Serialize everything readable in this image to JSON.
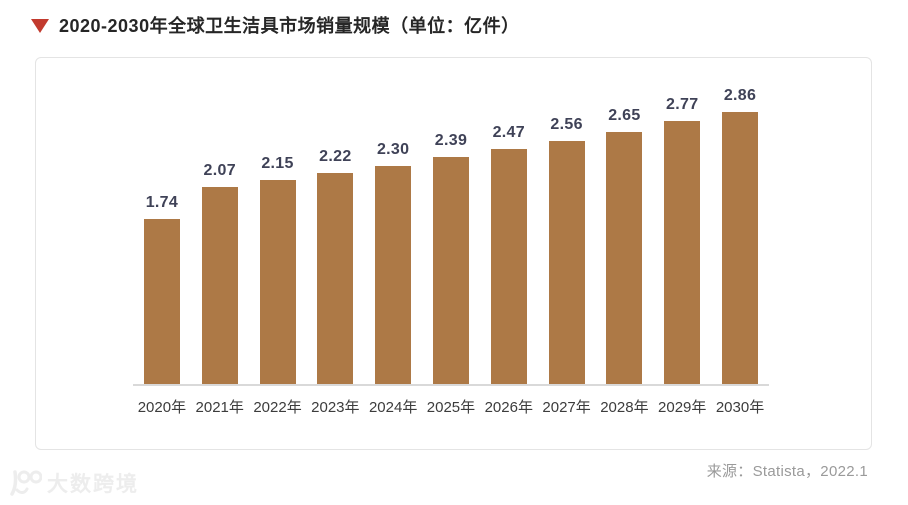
{
  "header": {
    "title": "2020-2030年全球卫生洁具市场销量规模（单位：亿件）",
    "marker_icon": "triangle-down",
    "accent_color": "#c23a2e"
  },
  "chart_data": {
    "type": "bar",
    "title": "2020-2030年全球卫生洁具市场销量规模",
    "unit_label": "单位：亿件",
    "categories": [
      "2020年",
      "2021年",
      "2022年",
      "2023年",
      "2024年",
      "2025年",
      "2026年",
      "2027年",
      "2028年",
      "2029年",
      "2030年"
    ],
    "values": [
      1.74,
      2.07,
      2.15,
      2.22,
      2.3,
      2.39,
      2.47,
      2.56,
      2.65,
      2.77,
      2.86
    ],
    "value_label_format": "0.00",
    "bar_color": "#ad7946",
    "value_label_color": "#3f4257",
    "axis_line_color": "#d9d9d9",
    "ylim": [
      0,
      3.0
    ],
    "grid": false,
    "legend": false,
    "y_axis_visible": false
  },
  "footer": {
    "source": "来源：Statista，2022.1"
  },
  "watermark": {
    "logo_icon": "dashu-kuajing-logo",
    "logo_text": "大数跨境"
  }
}
